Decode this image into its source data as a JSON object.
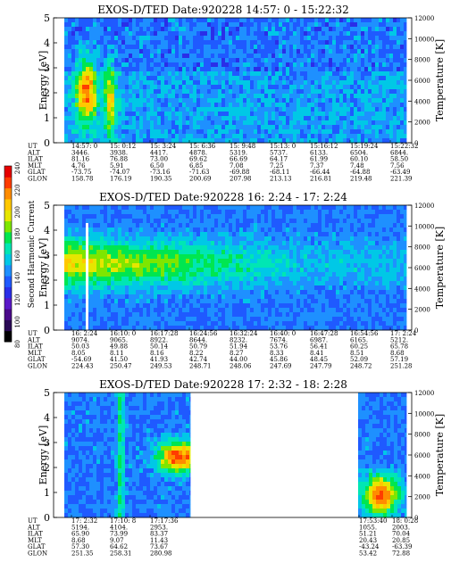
{
  "colorbar": {
    "title": "Second Harmonic Current",
    "ticks": [
      "80",
      "100",
      "120",
      "140",
      "160",
      "180",
      "200",
      "220",
      "240"
    ],
    "colors": [
      "#000000",
      "#2a0a55",
      "#4a0a8a",
      "#5a18c8",
      "#2a2ee8",
      "#1f5aff",
      "#1e90ff",
      "#00c8e6",
      "#00e6b4",
      "#00e650",
      "#7ee600",
      "#e6e600",
      "#ffc800",
      "#ff8c00",
      "#ff3c00",
      "#e60000"
    ]
  },
  "chart_data": [
    {
      "type": "heatmap",
      "title": "EXOS-D/TED   Date:920228  14:57: 0 - 15:22:32",
      "ylabel": "Energy [eV]",
      "y2label": "Temperature [K]",
      "ylim": [
        0,
        5
      ],
      "y2lim": [
        0,
        12000
      ],
      "yticks": [
        "0",
        "1",
        "2",
        "3",
        "4",
        "5"
      ],
      "y2ticks": [
        "0",
        "2000",
        "4000",
        "6000",
        "8000",
        "10000",
        "12000"
      ],
      "row_labels": [
        "UT",
        "ALT",
        "ILAT",
        "MLT",
        "GLAT",
        "GLON"
      ],
      "columns": [
        [
          "14:57: 0",
          "3446.",
          "81.16",
          "4.76",
          "-73.75",
          "158.78"
        ],
        [
          "15: 0:12",
          "3938.",
          "76.88",
          "5.91",
          "-74.07",
          "176.19"
        ],
        [
          "15: 3:24",
          "4417.",
          "73.00",
          "6.50",
          "-73.16",
          "190.35"
        ],
        [
          "15: 6:36",
          "4878.",
          "69.62",
          "6.85",
          "-71.63",
          "200.69"
        ],
        [
          "15: 9:48",
          "5319.",
          "66.69",
          "7.08",
          "-69.88",
          "207.98"
        ],
        [
          "15:13: 0",
          "5737.",
          "64.17",
          "7.25",
          "-68.11",
          "213.13"
        ],
        [
          "15:16:12",
          "6133.",
          "61.99",
          "7.37",
          "-66.44",
          "216.81"
        ],
        [
          "15:19:24",
          "6504.",
          "60.10",
          "7.48",
          "-64.88",
          "219.48"
        ],
        [
          "15:22:32",
          "6844.",
          "58.50",
          "7.56",
          "-63.49",
          "221.39"
        ]
      ]
    },
    {
      "type": "heatmap",
      "title": "EXOS-D/TED   Date:920228  16: 2:24 - 17: 2:24",
      "ylabel": "Energy [eV]",
      "y2label": "Temperature [K]",
      "ylim": [
        0,
        5
      ],
      "y2lim": [
        0,
        12000
      ],
      "yticks": [
        "0",
        "1",
        "2",
        "3",
        "4",
        "5"
      ],
      "y2ticks": [
        "0",
        "2000",
        "4000",
        "6000",
        "8000",
        "10000",
        "12000"
      ],
      "row_labels": [
        "UT",
        "ALT",
        "ILAT",
        "MLT",
        "GLAT",
        "GLON"
      ],
      "columns": [
        [
          "16: 2:24",
          "9074.",
          "50.03",
          "8.05",
          "-54.69",
          "224.43"
        ],
        [
          "16:10: 0",
          "9065.",
          "49.88",
          "8.11",
          "41.50",
          "250.47"
        ],
        [
          "16:17:28",
          "8922.",
          "50.14",
          "8.16",
          "41.93",
          "249.53"
        ],
        [
          "16:24:56",
          "8644.",
          "50.79",
          "8.22",
          "42.74",
          "248.71"
        ],
        [
          "16:32:24",
          "8232.",
          "51.94",
          "8.27",
          "44.00",
          "248.06"
        ],
        [
          "16:40: 0",
          "7674.",
          "53.76",
          "8.33",
          "45.86",
          "247.69"
        ],
        [
          "16:47:28",
          "6987.",
          "56.41",
          "8.41",
          "48.45",
          "247.79"
        ],
        [
          "16:54:56",
          "6165.",
          "60.25",
          "8.51",
          "52.09",
          "248.72"
        ],
        [
          "17: 2:24",
          "5212.",
          "65.78",
          "8.68",
          "57.19",
          "251.28"
        ]
      ]
    },
    {
      "type": "heatmap",
      "title": "EXOS-D/TED   Date:920228  17: 2:32 - 18: 2:28",
      "ylabel": "Energy [eV]",
      "y2label": "Temperature [K]",
      "ylim": [
        0,
        5
      ],
      "y2lim": [
        0,
        12000
      ],
      "yticks": [
        "0",
        "1",
        "2",
        "3",
        "4",
        "5"
      ],
      "y2ticks": [
        "0",
        "2000",
        "4000",
        "6000",
        "8000",
        "10000",
        "12000"
      ],
      "row_labels": [
        "UT",
        "ALT",
        "ILAT",
        "MLT",
        "GLAT",
        "GLON"
      ],
      "columns": [
        [
          "17: 2:32",
          "5194.",
          "65.90",
          "8.68",
          "57.30",
          "251.35"
        ],
        [
          "17:10: 8",
          "4104.",
          "73.99",
          "9.07",
          "64.62",
          "258.31"
        ],
        [
          "17:17:36",
          "2953.",
          "83.37",
          "11.43",
          "73.67",
          "280.98"
        ],
        [
          "17:53:40",
          "1055.",
          "51.21",
          "20.43",
          "-43.24",
          "53.42"
        ],
        [
          "18: 0:28",
          "2003.",
          "70.04",
          "20.85",
          "-63.39",
          "72.88"
        ]
      ]
    }
  ]
}
